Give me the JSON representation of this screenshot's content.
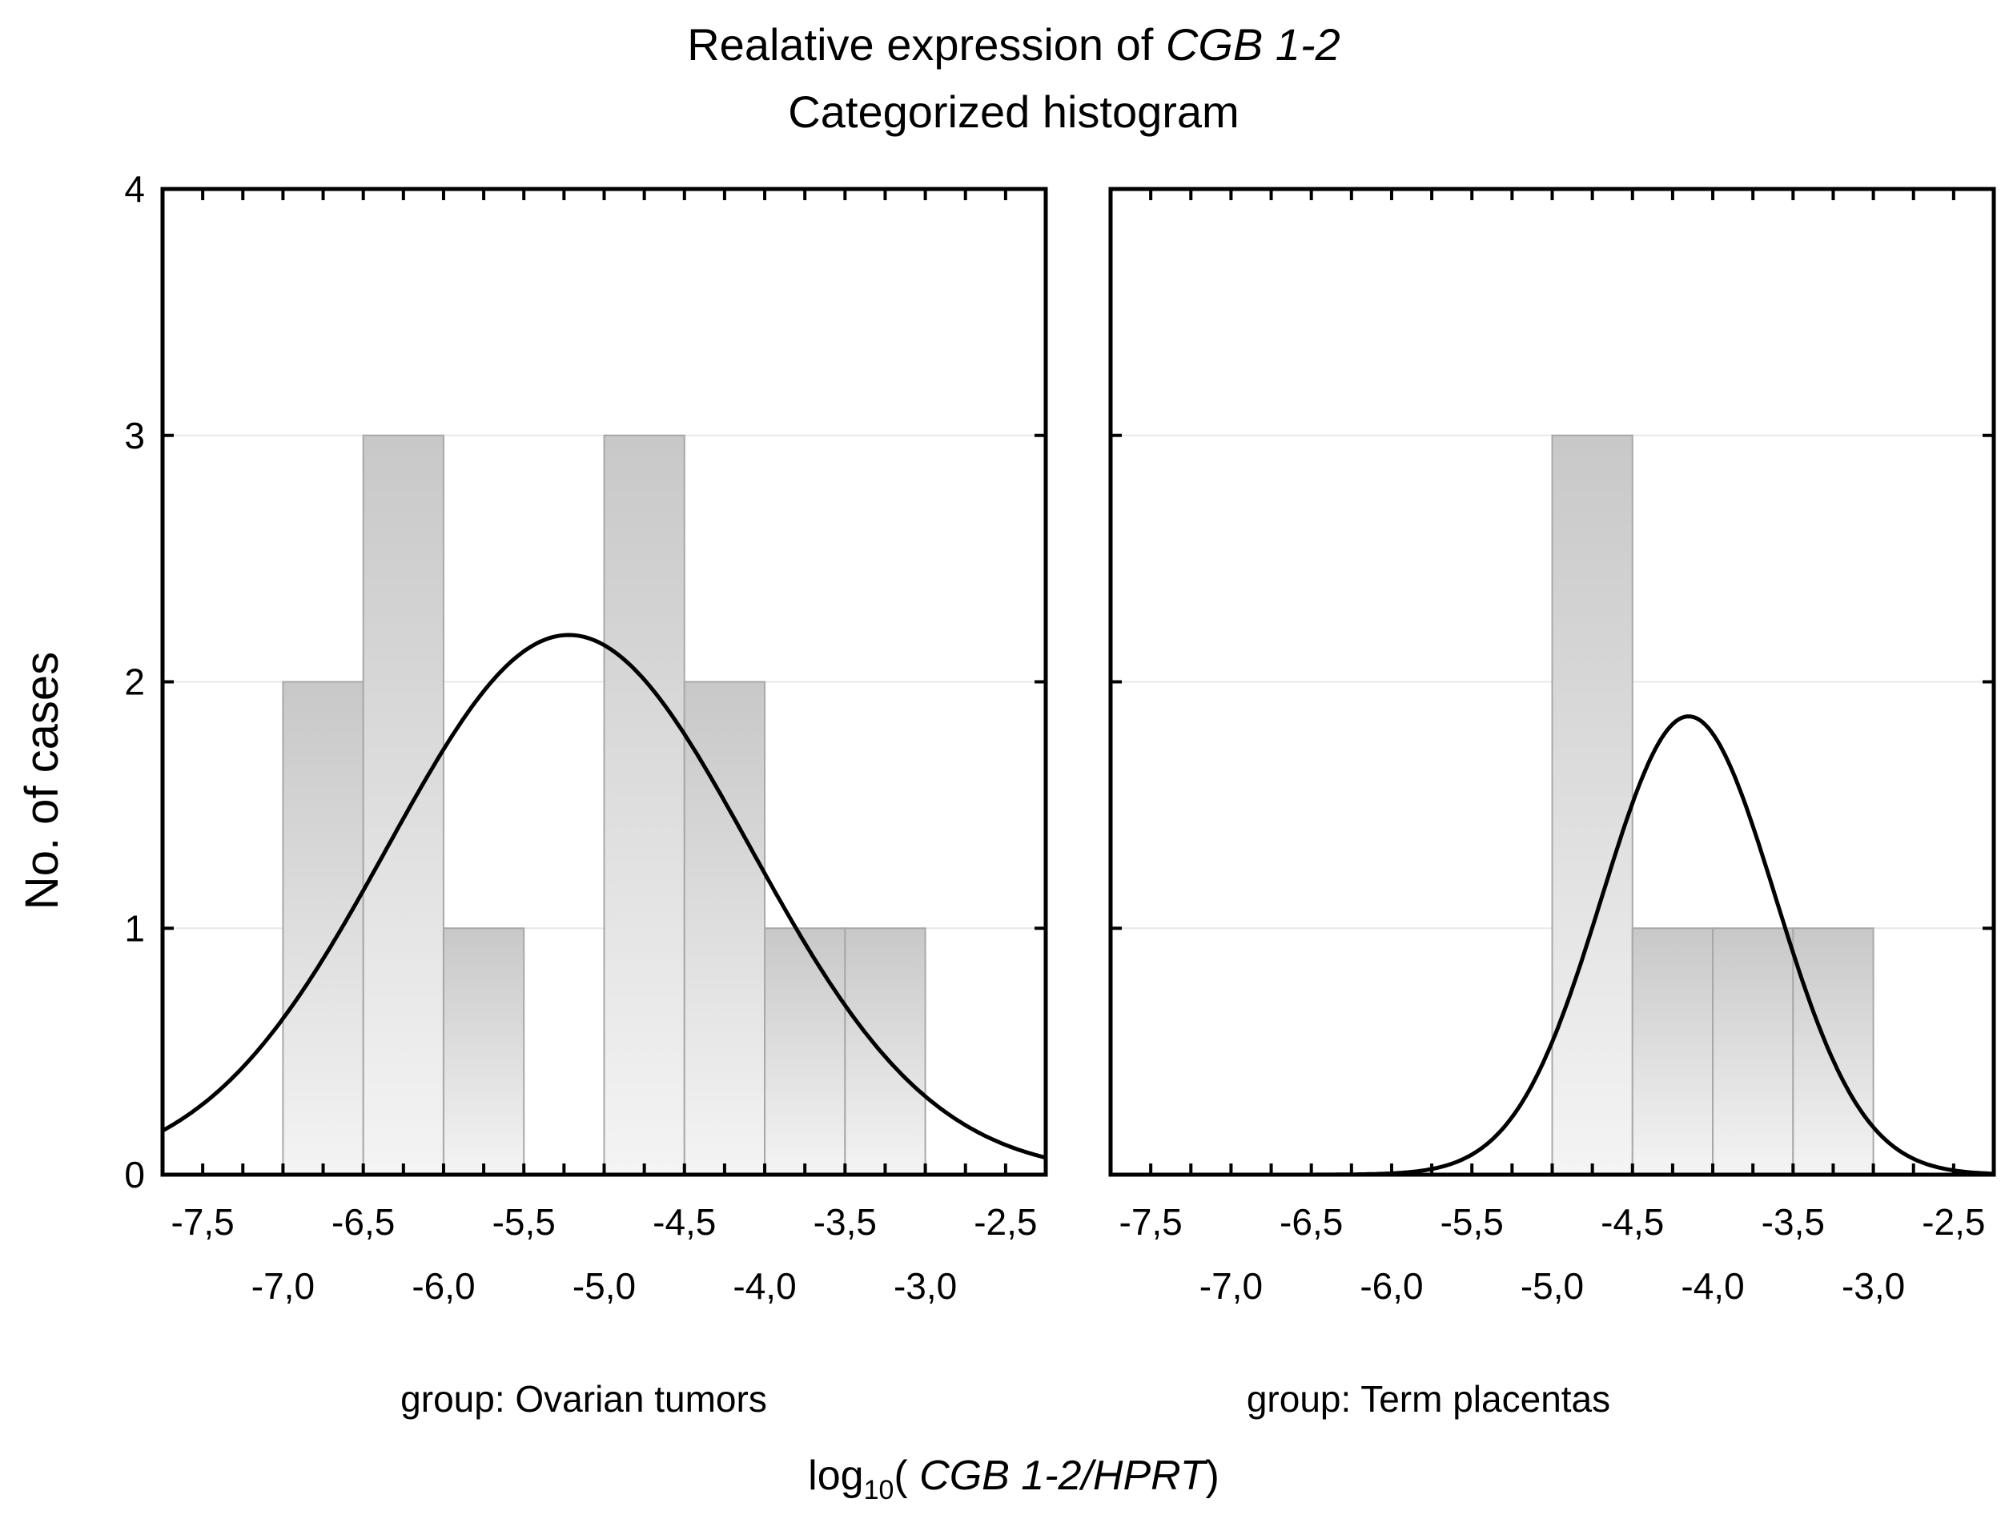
{
  "chart_data": {
    "type": "bar",
    "title_prefix": "Realative expression of ",
    "title_gene": "CGB 1-2",
    "subtitle": "Categorized histogram",
    "ylabel": "No. of cases",
    "xlabel_prefix": "log",
    "xlabel_sub": "10",
    "xlabel_open": "( ",
    "xlabel_var": "CGB 1-2/HPRT",
    "xlabel_close": ")",
    "ylim": [
      0,
      4
    ],
    "xlim": [
      -7.75,
      -2.25
    ],
    "y_ticks": [
      "0",
      "1",
      "2",
      "3",
      "4"
    ],
    "x_ticks_upper": [
      "-7,5",
      "-6,5",
      "-5,5",
      "-4,5",
      "-3,5",
      "-2,5"
    ],
    "x_ticks_lower": [
      "-7,0",
      "-6,0",
      "-5,0",
      "-4,0",
      "-3,0"
    ],
    "bin_width": 0.5,
    "panels": [
      {
        "group_label": "group: Ovarian tumors",
        "bins": [
          {
            "x0": -7.0,
            "x1": -6.5,
            "count": 2
          },
          {
            "x0": -6.5,
            "x1": -6.0,
            "count": 3
          },
          {
            "x0": -6.0,
            "x1": -5.5,
            "count": 1
          },
          {
            "x0": -5.5,
            "x1": -5.0,
            "count": 0
          },
          {
            "x0": -5.0,
            "x1": -4.5,
            "count": 3
          },
          {
            "x0": -4.5,
            "x1": -4.0,
            "count": 2
          },
          {
            "x0": -4.0,
            "x1": -3.5,
            "count": 1
          },
          {
            "x0": -3.5,
            "x1": -3.0,
            "count": 1
          }
        ],
        "normal_fit": {
          "mean": -5.22,
          "peak": 2.19,
          "sd": 1.13
        }
      },
      {
        "group_label": "group: Term placentas",
        "bins": [
          {
            "x0": -5.0,
            "x1": -4.5,
            "count": 3
          },
          {
            "x0": -4.5,
            "x1": -4.0,
            "count": 1
          },
          {
            "x0": -4.0,
            "x1": -3.5,
            "count": 1
          },
          {
            "x0": -3.5,
            "x1": -3.0,
            "count": 1
          }
        ],
        "normal_fit": {
          "mean": -4.15,
          "peak": 1.86,
          "sd": 0.54
        }
      }
    ],
    "colors": {
      "bar_top": "#c8c8c8",
      "bar_bottom": "#f4f4f4",
      "bar_edge": "#a8a8a8",
      "grid": "#e8e8e8",
      "axis": "#000000"
    }
  }
}
